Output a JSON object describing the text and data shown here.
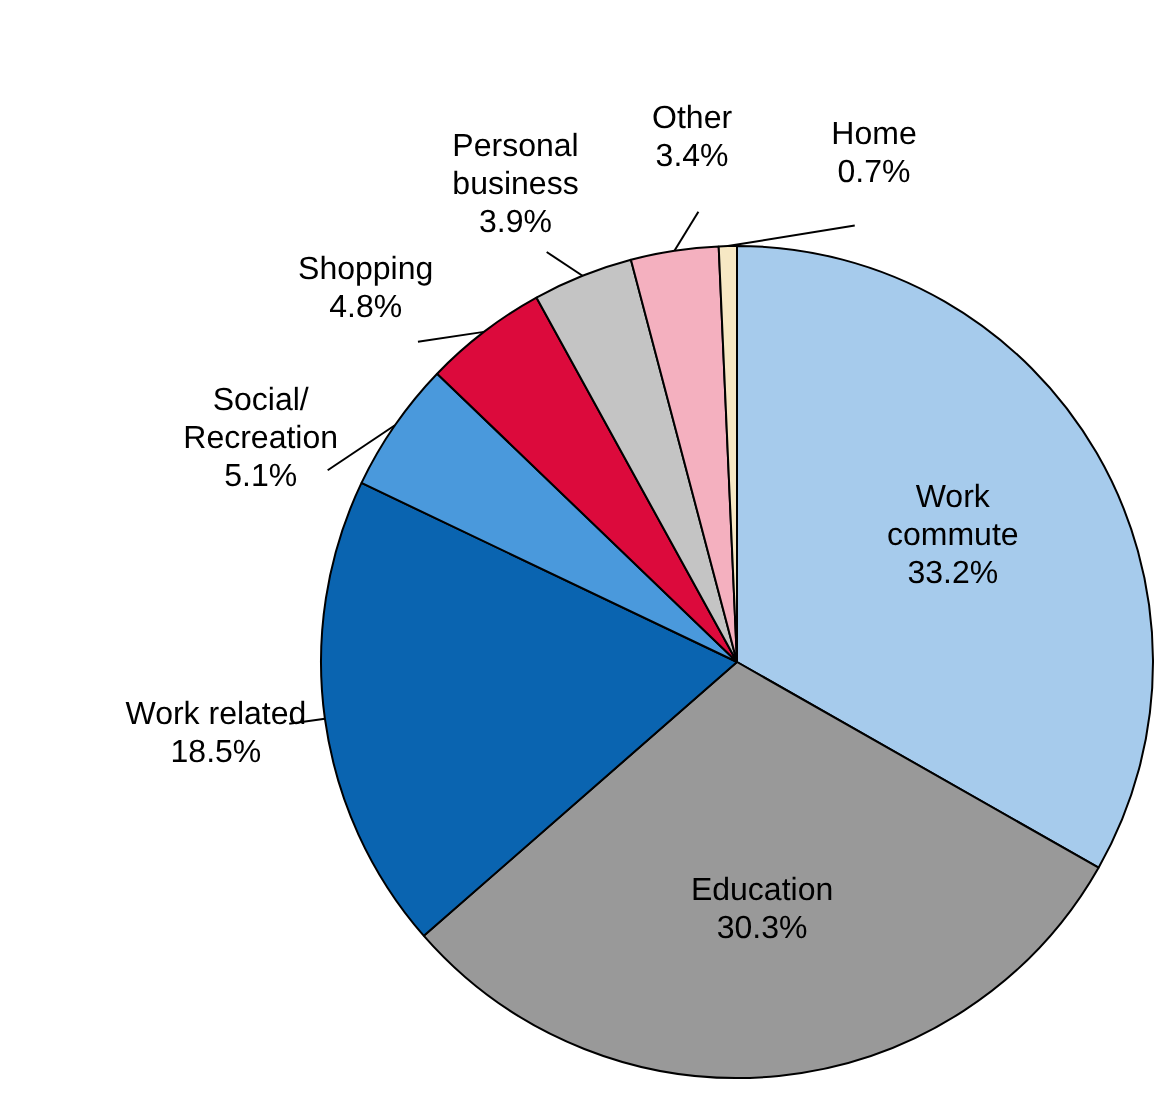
{
  "chart_data": {
    "type": "pie",
    "categories": [
      "Work commute",
      "Education",
      "Work related",
      "Social/Recreation",
      "Shopping",
      "Personal business",
      "Other",
      "Home"
    ],
    "values": [
      33.2,
      30.3,
      18.5,
      5.1,
      4.8,
      3.9,
      3.4,
      0.7
    ],
    "value_labels": [
      "33.2%",
      "30.3%",
      "18.5%",
      "5.1%",
      "4.8%",
      "3.9%",
      "3.4%",
      "0.7%"
    ],
    "colors": [
      "#a6cbec",
      "#999999",
      "#0a64b0",
      "#4a99dc",
      "#dc0a3c",
      "#c4c4c4",
      "#f4b0bf",
      "#f7e8c4"
    ],
    "legend": false
  }
}
